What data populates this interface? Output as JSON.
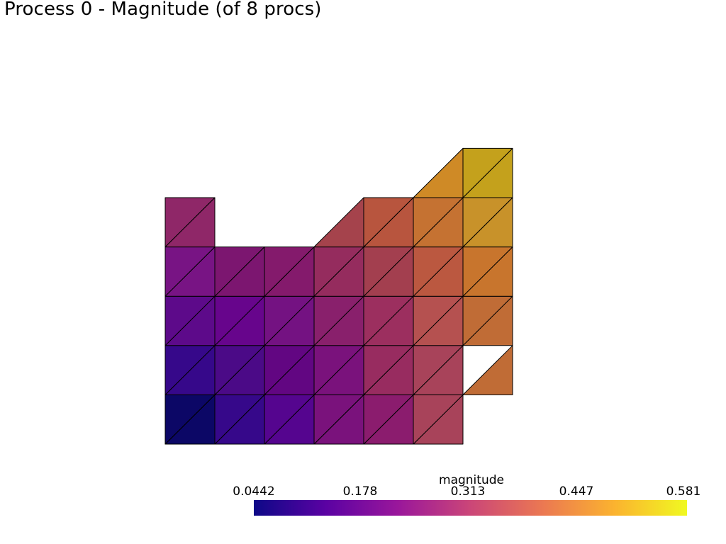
{
  "title": "Process 0 - Magnitude (of 8 procs)",
  "scalar_bar": {
    "title": "magnitude",
    "ticks": [
      "0.0442",
      "0.178",
      "0.313",
      "0.447",
      "0.581"
    ],
    "range": [
      0.0442,
      0.581
    ],
    "colormap": "plasma",
    "colormap_stops": [
      "#0d0887",
      "#5b02a3",
      "#9a179b",
      "#cb4678",
      "#eb7852",
      "#fbb32f",
      "#f0f921"
    ]
  },
  "mesh": {
    "cell_type": "triangle",
    "edge_color": "#000000",
    "cells": [
      {
        "row": 0,
        "col": 0,
        "tri": "lower",
        "color": "#0c0766"
      },
      {
        "row": 0,
        "col": 0,
        "tri": "upper",
        "color": "#0c0766"
      },
      {
        "row": 0,
        "col": 1,
        "tri": "lower",
        "color": "#36088a"
      },
      {
        "row": 0,
        "col": 1,
        "tri": "upper",
        "color": "#36088a"
      },
      {
        "row": 0,
        "col": 2,
        "tri": "lower",
        "color": "#55058f"
      },
      {
        "row": 0,
        "col": 2,
        "tri": "upper",
        "color": "#55058f"
      },
      {
        "row": 0,
        "col": 3,
        "tri": "lower",
        "color": "#7a127c"
      },
      {
        "row": 0,
        "col": 3,
        "tri": "upper",
        "color": "#7a127c"
      },
      {
        "row": 0,
        "col": 4,
        "tri": "lower",
        "color": "#8b1c6e"
      },
      {
        "row": 0,
        "col": 4,
        "tri": "upper",
        "color": "#8b1c6e"
      },
      {
        "row": 0,
        "col": 5,
        "tri": "lower",
        "color": "#a8435a"
      },
      {
        "row": 0,
        "col": 5,
        "tri": "upper",
        "color": "#a8435a"
      },
      {
        "row": 1,
        "col": 0,
        "tri": "lower",
        "color": "#36088a"
      },
      {
        "row": 1,
        "col": 0,
        "tri": "upper",
        "color": "#36088a"
      },
      {
        "row": 1,
        "col": 1,
        "tri": "lower",
        "color": "#4b0a87"
      },
      {
        "row": 1,
        "col": 1,
        "tri": "upper",
        "color": "#4b0a87"
      },
      {
        "row": 1,
        "col": 2,
        "tri": "lower",
        "color": "#620682"
      },
      {
        "row": 1,
        "col": 2,
        "tri": "upper",
        "color": "#620682"
      },
      {
        "row": 1,
        "col": 3,
        "tri": "lower",
        "color": "#7a127c"
      },
      {
        "row": 1,
        "col": 3,
        "tri": "upper",
        "color": "#7a127c"
      },
      {
        "row": 1,
        "col": 4,
        "tri": "lower",
        "color": "#982c60"
      },
      {
        "row": 1,
        "col": 4,
        "tri": "upper",
        "color": "#982c60"
      },
      {
        "row": 1,
        "col": 5,
        "tri": "lower",
        "color": "#a8435a"
      },
      {
        "row": 1,
        "col": 5,
        "tri": "upper",
        "color": "#a8435a"
      },
      {
        "row": 1,
        "col": 6,
        "tri": "lower",
        "color": "#c06c36"
      },
      {
        "row": 2,
        "col": 0,
        "tri": "lower",
        "color": "#5d0a8a"
      },
      {
        "row": 2,
        "col": 0,
        "tri": "upper",
        "color": "#5d0a8a"
      },
      {
        "row": 2,
        "col": 1,
        "tri": "lower",
        "color": "#67058c"
      },
      {
        "row": 2,
        "col": 1,
        "tri": "upper",
        "color": "#67058c"
      },
      {
        "row": 2,
        "col": 2,
        "tri": "lower",
        "color": "#741282"
      },
      {
        "row": 2,
        "col": 2,
        "tri": "upper",
        "color": "#741282"
      },
      {
        "row": 2,
        "col": 3,
        "tri": "lower",
        "color": "#89206c"
      },
      {
        "row": 2,
        "col": 3,
        "tri": "upper",
        "color": "#89206c"
      },
      {
        "row": 2,
        "col": 4,
        "tri": "lower",
        "color": "#9c2f5f"
      },
      {
        "row": 2,
        "col": 4,
        "tri": "upper",
        "color": "#9c2f5f"
      },
      {
        "row": 2,
        "col": 5,
        "tri": "lower",
        "color": "#b55150"
      },
      {
        "row": 2,
        "col": 5,
        "tri": "upper",
        "color": "#b55150"
      },
      {
        "row": 2,
        "col": 6,
        "tri": "lower",
        "color": "#c06c36"
      },
      {
        "row": 2,
        "col": 6,
        "tri": "upper",
        "color": "#c06c36"
      },
      {
        "row": 3,
        "col": 0,
        "tri": "lower",
        "color": "#781484"
      },
      {
        "row": 3,
        "col": 0,
        "tri": "upper",
        "color": "#781484"
      },
      {
        "row": 3,
        "col": 1,
        "tri": "lower",
        "color": "#7c1670"
      },
      {
        "row": 3,
        "col": 1,
        "tri": "upper",
        "color": "#7c1670"
      },
      {
        "row": 3,
        "col": 2,
        "tri": "lower",
        "color": "#841a6c"
      },
      {
        "row": 3,
        "col": 2,
        "tri": "upper",
        "color": "#841a6c"
      },
      {
        "row": 3,
        "col": 3,
        "tri": "lower",
        "color": "#952c5e"
      },
      {
        "row": 3,
        "col": 3,
        "tri": "upper",
        "color": "#952c5e"
      },
      {
        "row": 3,
        "col": 4,
        "tri": "lower",
        "color": "#a33f4f"
      },
      {
        "row": 3,
        "col": 4,
        "tri": "upper",
        "color": "#a33f4f"
      },
      {
        "row": 3,
        "col": 5,
        "tri": "lower",
        "color": "#bb5840"
      },
      {
        "row": 3,
        "col": 5,
        "tri": "upper",
        "color": "#bb5840"
      },
      {
        "row": 3,
        "col": 6,
        "tri": "lower",
        "color": "#c8752d"
      },
      {
        "row": 3,
        "col": 6,
        "tri": "upper",
        "color": "#c8752d"
      },
      {
        "row": 4,
        "col": 0,
        "tri": "lower",
        "color": "#8f2768"
      },
      {
        "row": 4,
        "col": 0,
        "tri": "upper",
        "color": "#8f2768"
      },
      {
        "row": 4,
        "col": 3,
        "tri": "lower",
        "color": "#a5434c"
      },
      {
        "row": 4,
        "col": 4,
        "tri": "lower",
        "color": "#b8553e"
      },
      {
        "row": 4,
        "col": 4,
        "tri": "upper",
        "color": "#b8553e"
      },
      {
        "row": 4,
        "col": 5,
        "tri": "lower",
        "color": "#c57232"
      },
      {
        "row": 4,
        "col": 5,
        "tri": "upper",
        "color": "#c57232"
      },
      {
        "row": 4,
        "col": 6,
        "tri": "lower",
        "color": "#c8922a"
      },
      {
        "row": 4,
        "col": 6,
        "tri": "upper",
        "color": "#c8922a"
      },
      {
        "row": 5,
        "col": 5,
        "tri": "lower",
        "color": "#cf8a26"
      },
      {
        "row": 5,
        "col": 6,
        "tri": "lower",
        "color": "#c4a11c"
      },
      {
        "row": 5,
        "col": 6,
        "tri": "upper",
        "color": "#c4a11c"
      }
    ]
  }
}
